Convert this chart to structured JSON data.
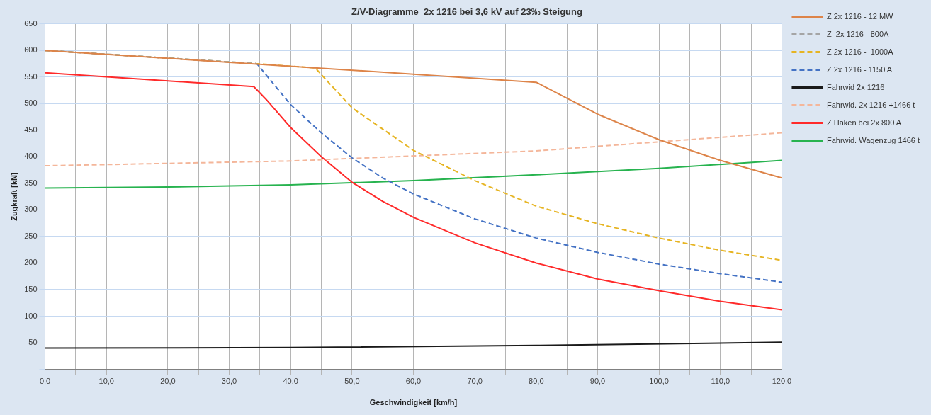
{
  "chart_data": {
    "type": "line",
    "title": "Z/V-Diagramme  2x 1216 bei 3,6 kV auf 23‰ Steigung",
    "xlabel": "Geschwindigkeit [km/h]",
    "ylabel": "Zugkraft [kN]",
    "xlim": [
      0,
      120
    ],
    "ylim": [
      0,
      650
    ],
    "xticks": [
      {
        "value": 0,
        "label": "0,0"
      },
      {
        "value": 5,
        "label": null
      },
      {
        "value": 10,
        "label": "10,0"
      },
      {
        "value": 15,
        "label": null
      },
      {
        "value": 20,
        "label": "20,0"
      },
      {
        "value": 25,
        "label": null
      },
      {
        "value": 30,
        "label": "30,0"
      },
      {
        "value": 35,
        "label": null
      },
      {
        "value": 40,
        "label": "40,0"
      },
      {
        "value": 45,
        "label": null
      },
      {
        "value": 50,
        "label": "50,0"
      },
      {
        "value": 55,
        "label": null
      },
      {
        "value": 60,
        "label": "60,0"
      },
      {
        "value": 65,
        "label": null
      },
      {
        "value": 70,
        "label": "70,0"
      },
      {
        "value": 75,
        "label": null
      },
      {
        "value": 80,
        "label": "80,0"
      },
      {
        "value": 85,
        "label": null
      },
      {
        "value": 90,
        "label": "90,0"
      },
      {
        "value": 95,
        "label": null
      },
      {
        "value": 100,
        "label": "100,0"
      },
      {
        "value": 105,
        "label": null
      },
      {
        "value": 110,
        "label": "110,0"
      },
      {
        "value": 115,
        "label": null
      },
      {
        "value": 120,
        "label": "120,0"
      }
    ],
    "yticks": [
      {
        "value": 0,
        "label": "-"
      },
      50,
      100,
      150,
      200,
      250,
      300,
      350,
      400,
      450,
      500,
      550,
      600,
      650
    ],
    "grid": true,
    "legend": "right",
    "marker": "none",
    "series": [
      {
        "name": "Z 2x 1216 - 12 MW",
        "color": "#dd8449",
        "line_style": "solid",
        "x": [
          0,
          43,
          80,
          90,
          100,
          110,
          120
        ],
        "values": [
          600,
          568,
          540,
          480,
          432,
          393,
          360
        ]
      },
      {
        "name": "Z  2x 1216 - 800A",
        "color": "#a5a5a5",
        "line_style": "dashed",
        "x": [
          0,
          34.5
        ],
        "values": [
          600,
          575
        ]
      },
      {
        "name": "Z 2x 1216 -  1000A",
        "color": "#e6b422",
        "line_style": "dashed",
        "x": [
          0,
          34.5,
          44,
          50,
          60,
          70,
          80,
          90,
          100,
          110,
          120
        ],
        "values": [
          600,
          575,
          567,
          492,
          412,
          355,
          307,
          274,
          247,
          224,
          205
        ]
      },
      {
        "name": "Z 2x 1216 - 1150 A",
        "color": "#4472c4",
        "line_style": "dashed",
        "x": [
          0,
          34.5,
          40,
          45,
          50,
          55,
          60,
          70,
          80,
          90,
          100,
          110,
          120
        ],
        "values": [
          600,
          575,
          498,
          445,
          398,
          360,
          330,
          283,
          247,
          220,
          198,
          180,
          164
        ]
      },
      {
        "name": "Fahrwid 2x 1216",
        "color": "#1a1a1a",
        "line_style": "solid",
        "x": [
          0,
          40,
          80,
          120
        ],
        "values": [
          40,
          41,
          45,
          51
        ]
      },
      {
        "name": "Fahrwid. 2x 1216 +1466 t",
        "color": "#f4b69a",
        "line_style": "dashed",
        "x": [
          0,
          40,
          80,
          120
        ],
        "values": [
          383,
          392,
          411,
          445
        ]
      },
      {
        "name": "Z Haken bei 2x 800 A",
        "color": "#ff2a2a",
        "line_style": "solid",
        "x": [
          0,
          34,
          36,
          40,
          45,
          50,
          55,
          60,
          70,
          80,
          90,
          100,
          110,
          120
        ],
        "values": [
          558,
          532,
          508,
          455,
          400,
          352,
          316,
          286,
          238,
          200,
          170,
          148,
          128,
          112
        ]
      },
      {
        "name": "Fahrwid. Wagenzug 1466 t",
        "color": "#27b34f",
        "line_style": "solid",
        "x": [
          0,
          20,
          40,
          60,
          80,
          100,
          120
        ],
        "values": [
          341,
          343,
          347,
          355,
          366,
          378,
          393
        ]
      }
    ]
  }
}
